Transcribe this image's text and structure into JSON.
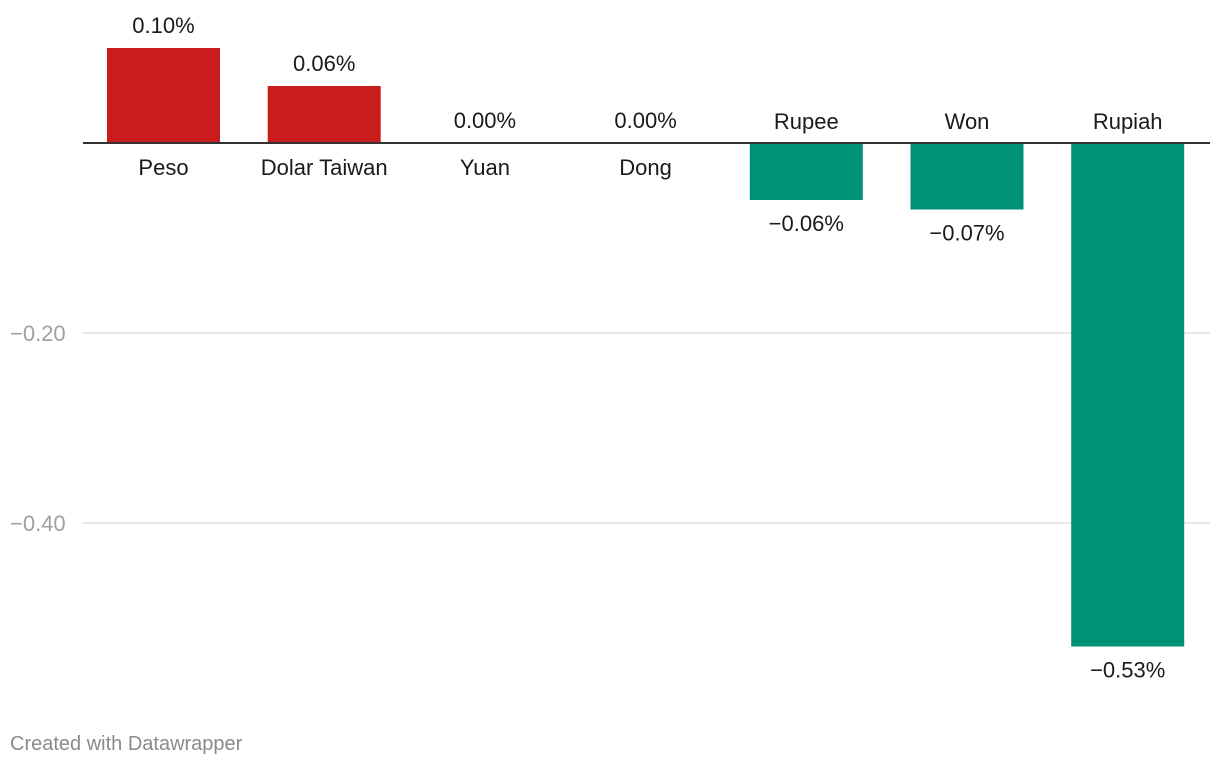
{
  "chart_data": {
    "type": "bar",
    "title": "",
    "xlabel": "",
    "ylabel": "",
    "categories": [
      "Peso",
      "Dolar Taiwan",
      "Yuan",
      "Dong",
      "Rupee",
      "Won",
      "Rupiah"
    ],
    "values": [
      0.1,
      0.06,
      0.0,
      0.0,
      -0.06,
      -0.07,
      -0.53
    ],
    "value_labels": [
      "0.10%",
      "0.06%",
      "0.00%",
      "0.00%",
      "−0.06%",
      "−0.07%",
      "−0.53%"
    ],
    "yticks": [
      {
        "value": -0.2,
        "label": "−0.20"
      },
      {
        "value": -0.4,
        "label": "−0.40"
      }
    ],
    "ylim": [
      -0.53,
      0.1
    ],
    "grid": true,
    "colors": {
      "positive": "#c91c1c",
      "negative": "#009177",
      "gridline": "#e0e0e0",
      "baseline": "#333333"
    }
  },
  "footer": {
    "credit": "Created with Datawrapper"
  }
}
